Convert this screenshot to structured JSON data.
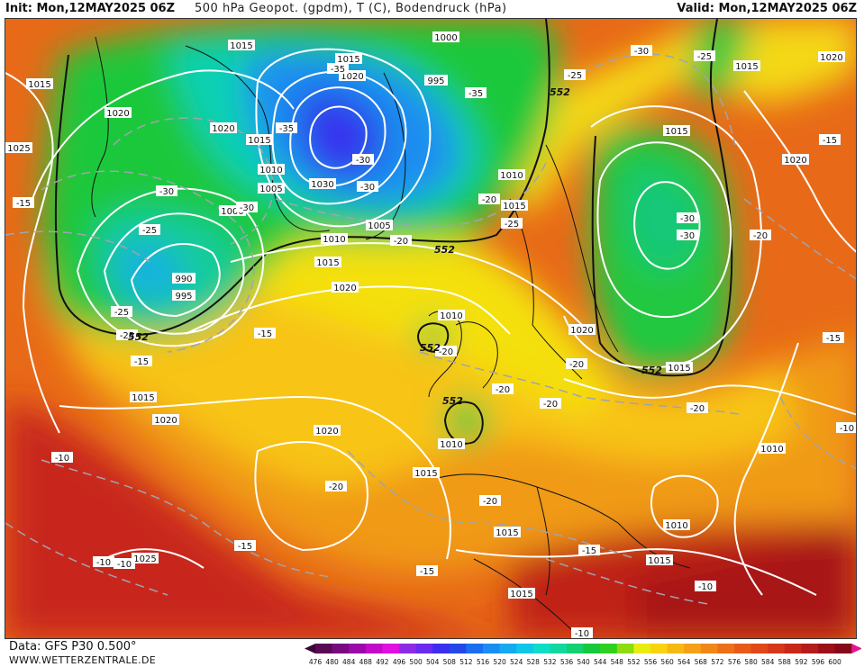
{
  "header": {
    "init": "Init: Mon,12MAY2025 06Z",
    "title": "500 hPa Geopot. (gpdm), T (C), Bodendruck (hPa)",
    "valid": "Valid: Mon,12MAY2025 06Z"
  },
  "footer": {
    "data_source": "Data: GFS P30 0.500°",
    "website": "WWW.WETTERZENTRALE.DE"
  },
  "legend": {
    "ticks": [
      "476",
      "480",
      "484",
      "488",
      "492",
      "496",
      "500",
      "504",
      "508",
      "512",
      "516",
      "520",
      "524",
      "528",
      "532",
      "536",
      "540",
      "544",
      "548",
      "552",
      "556",
      "560",
      "564",
      "568",
      "572",
      "576",
      "580",
      "584",
      "588",
      "592",
      "596",
      "600"
    ],
    "colors": [
      "#5a0a55",
      "#7a0a80",
      "#9a0aa8",
      "#c20ac8",
      "#e010e0",
      "#8c2be6",
      "#6a2af0",
      "#3b2ef0",
      "#2448e8",
      "#1a6ef0",
      "#1a8ef0",
      "#14aaf0",
      "#10c6e8",
      "#10dcc8",
      "#12d8a0",
      "#14d070",
      "#16c83c",
      "#30d020",
      "#8cdc10",
      "#e8ec10",
      "#f8d410",
      "#f8b814",
      "#f4a018",
      "#f08818",
      "#ec7018",
      "#e85a18",
      "#e04818",
      "#d63818",
      "#c82818",
      "#b41c1c",
      "#9c1018",
      "#86081a"
    ]
  },
  "map": {
    "pressure_labels": [
      "1015",
      "1000",
      "1015",
      "1020",
      "995",
      "1015",
      "1020",
      "1025",
      "1020",
      "1020",
      "1015",
      "1010",
      "1005",
      "1030",
      "1000",
      "1005",
      "1010",
      "1010",
      "1015",
      "990",
      "995",
      "1015",
      "1020",
      "1015",
      "1020",
      "1015",
      "1010",
      "1020",
      "1010",
      "1015",
      "1020",
      "1015",
      "1020",
      "1025",
      "1010",
      "1015",
      "1015",
      "1010",
      "1015",
      "1015"
    ],
    "temp_labels": [
      "-30",
      "-25",
      "-35",
      "-35",
      "-35",
      "-30",
      "-30",
      "-30",
      "-30",
      "-25",
      "-15",
      "-25",
      "-25",
      "-25",
      "-20",
      "-20",
      "-25",
      "-30",
      "-30",
      "-20",
      "-15",
      "-20",
      "-20",
      "-20",
      "-20",
      "-20",
      "-20",
      "-15",
      "-15",
      "-10",
      "-15",
      "-10",
      "-10",
      "-15",
      "-15",
      "-10",
      "-15",
      "-10",
      "-20",
      "-10"
    ],
    "geopotential_labels": [
      "552",
      "552",
      "552",
      "552",
      "552",
      "552",
      "552"
    ]
  }
}
